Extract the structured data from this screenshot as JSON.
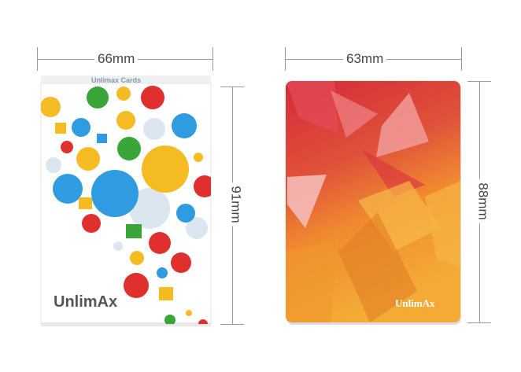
{
  "box": {
    "width_label": "66mm",
    "height_label": "91mm",
    "brand": "UnlimAx",
    "top_text": "Unlimax Cards"
  },
  "card": {
    "width_label": "63mm",
    "height_label": "88mm",
    "brand": "UnlimAx"
  },
  "colors": {
    "bubble_blue": "#2f9be0",
    "bubble_yellow": "#f5bb23",
    "bubble_red": "#e0302e",
    "bubble_green": "#3aa63a",
    "card_red": "#d8283a",
    "card_orange": "#f0a030"
  }
}
